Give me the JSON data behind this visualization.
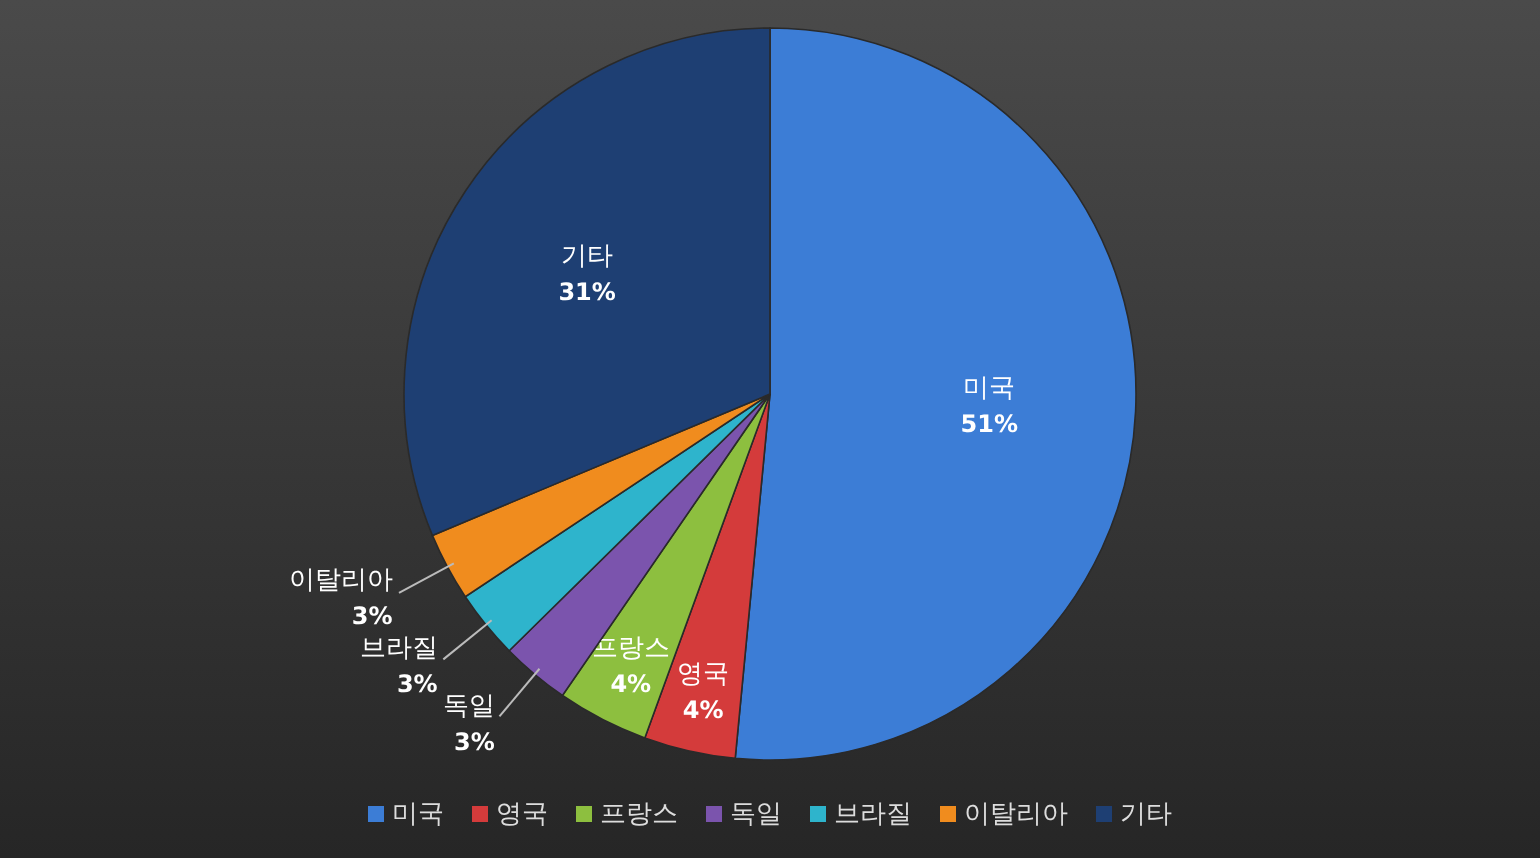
{
  "chart_data": {
    "type": "pie",
    "categories": [
      "미국",
      "영국",
      "프랑스",
      "독일",
      "브라질",
      "이탈리아",
      "기타"
    ],
    "values": [
      51,
      4,
      4,
      3,
      3,
      3,
      31
    ],
    "value_labels": [
      "51%",
      "4%",
      "4%",
      "3%",
      "3%",
      "3%",
      "31%"
    ],
    "colors": [
      "#3c7dd6",
      "#d43b3b",
      "#8dbf3f",
      "#7b54ad",
      "#2eb4cc",
      "#f08c1e",
      "#1e3f73"
    ],
    "legend": "bottom"
  }
}
